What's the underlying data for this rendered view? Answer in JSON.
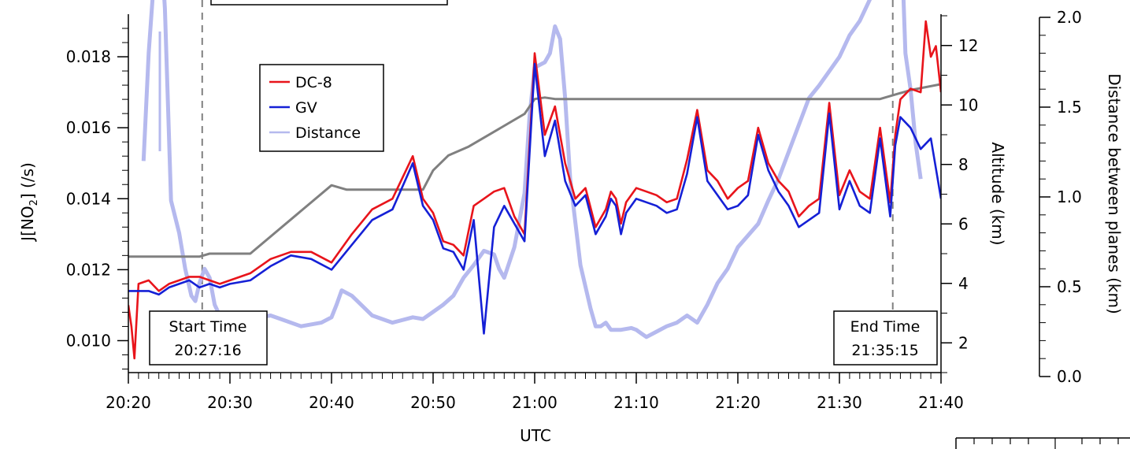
{
  "chart_data": {
    "type": "line",
    "xlabel": "UTC",
    "ylabel_left": {
      "prefix": "J[NO",
      "sub": "2",
      "suffix": "] (/s)"
    },
    "ylabel_right1": "Altitude (km)",
    "ylabel_right2": "Distance between planes (km)",
    "x_ticks": [
      "20:20",
      "20:30",
      "20:40",
      "20:50",
      "21:00",
      "21:10",
      "21:20",
      "21:30",
      "21:40"
    ],
    "xlim_minutes": [
      0,
      80
    ],
    "y_left_ticks": [
      "0.010",
      "0.012",
      "0.014",
      "0.016",
      "0.018"
    ],
    "ylim_left": [
      0.0091,
      0.0192
    ],
    "y_alt_ticks": [
      "2",
      "4",
      "6",
      "8",
      "10",
      "12"
    ],
    "ylim_alt": [
      1.0,
      13.0
    ],
    "y_dist_ticks": [
      "0.0",
      "0.5",
      "1.0",
      "1.5",
      "2.0"
    ],
    "ylim_dist": [
      0.0,
      2.0
    ],
    "legend": {
      "position": "upper-left",
      "entries": [
        {
          "label": "DC-8",
          "color": "#e8141b"
        },
        {
          "label": "GV",
          "color": "#1520d6"
        },
        {
          "label": "Distance",
          "color": "#b5b9ee"
        }
      ]
    },
    "annotations": {
      "start": {
        "line1": "Start Time",
        "line2": "20:27:16",
        "x_minutes": 7.27
      },
      "end": {
        "line1": "End Time",
        "line2": "21:35:15",
        "x_minutes": 75.25
      }
    },
    "series": [
      {
        "name": "DC-8",
        "axis": "left",
        "color": "#e8141b",
        "x": [
          0,
          0.3,
          0.6,
          1,
          2,
          3,
          4,
          5,
          6,
          7,
          8,
          9,
          10,
          12,
          14,
          16,
          18,
          20,
          22,
          24,
          26,
          28,
          29,
          30,
          31,
          32,
          33,
          34,
          35,
          36,
          37,
          38,
          39,
          40,
          41,
          42,
          43,
          44,
          45,
          46,
          47,
          47.5,
          48,
          48.5,
          49,
          50,
          51,
          52,
          53,
          54,
          55,
          56,
          57,
          58,
          59,
          60,
          61,
          62,
          63,
          64,
          65,
          66,
          67,
          68,
          69,
          70,
          71,
          72,
          73,
          74,
          75,
          75.5,
          76,
          77,
          78,
          78.5,
          79,
          79.5,
          80
        ],
        "y": [
          0.011,
          0.0104,
          0.0095,
          0.0116,
          0.0117,
          0.0114,
          0.0116,
          0.0117,
          0.0118,
          0.0118,
          0.0117,
          0.0116,
          0.0117,
          0.0119,
          0.0123,
          0.0125,
          0.0125,
          0.0122,
          0.013,
          0.0137,
          0.014,
          0.0152,
          0.014,
          0.0136,
          0.0128,
          0.0127,
          0.0124,
          0.0138,
          0.014,
          0.0142,
          0.0143,
          0.0135,
          0.013,
          0.0181,
          0.0158,
          0.0166,
          0.015,
          0.014,
          0.0143,
          0.0132,
          0.0137,
          0.0142,
          0.014,
          0.0133,
          0.0139,
          0.0143,
          0.0142,
          0.0141,
          0.0139,
          0.014,
          0.0151,
          0.0165,
          0.0148,
          0.0145,
          0.014,
          0.0143,
          0.0145,
          0.016,
          0.015,
          0.0145,
          0.0142,
          0.0135,
          0.0138,
          0.014,
          0.0167,
          0.0141,
          0.0148,
          0.0142,
          0.014,
          0.016,
          0.0139,
          0.0158,
          0.0168,
          0.0171,
          0.017,
          0.019,
          0.018,
          0.0183,
          0.017
        ]
      },
      {
        "name": "GV",
        "axis": "left",
        "color": "#1520d6",
        "x": [
          0,
          1,
          2,
          3,
          4,
          5,
          6,
          7,
          8,
          9,
          10,
          12,
          14,
          16,
          18,
          20,
          22,
          24,
          26,
          28,
          29,
          30,
          31,
          32,
          33,
          34,
          35,
          36,
          37,
          38,
          39,
          40,
          41,
          42,
          43,
          44,
          45,
          46,
          47,
          47.5,
          48,
          48.5,
          49,
          50,
          51,
          52,
          53,
          54,
          55,
          56,
          57,
          58,
          59,
          60,
          61,
          62,
          63,
          64,
          65,
          66,
          67,
          68,
          69,
          70,
          71,
          72,
          73,
          74,
          75,
          75.5,
          76,
          77,
          78,
          79,
          80
        ],
        "y": [
          0.0114,
          0.0114,
          0.0114,
          0.0113,
          0.0115,
          0.0116,
          0.0117,
          0.0115,
          0.0116,
          0.0115,
          0.0116,
          0.0117,
          0.0121,
          0.0124,
          0.0123,
          0.012,
          0.0127,
          0.0134,
          0.0137,
          0.015,
          0.0138,
          0.0134,
          0.0126,
          0.0125,
          0.012,
          0.0134,
          0.0102,
          0.0132,
          0.0138,
          0.0133,
          0.0128,
          0.0178,
          0.0152,
          0.0162,
          0.0145,
          0.0138,
          0.0141,
          0.013,
          0.0135,
          0.014,
          0.0138,
          0.013,
          0.0136,
          0.014,
          0.0139,
          0.0138,
          0.0136,
          0.0137,
          0.0147,
          0.0163,
          0.0145,
          0.0141,
          0.0137,
          0.0138,
          0.0141,
          0.0158,
          0.0148,
          0.0142,
          0.0138,
          0.0132,
          0.0134,
          0.0136,
          0.0164,
          0.0137,
          0.0145,
          0.0138,
          0.0136,
          0.0157,
          0.0135,
          0.0155,
          0.0163,
          0.016,
          0.0154,
          0.0157,
          0.014
        ]
      },
      {
        "name": "Altitude",
        "axis": "altitude",
        "color": "#808080",
        "x": [
          0,
          7.0,
          8.0,
          12.0,
          20.0,
          21.5,
          29.0,
          30.0,
          31.5,
          33.5,
          39.0,
          40.0,
          41.0,
          42.0,
          74.0,
          77.0,
          80.0
        ],
        "y": [
          4.9,
          4.9,
          5.0,
          5.0,
          7.3,
          7.15,
          7.15,
          7.8,
          8.3,
          8.6,
          9.7,
          10.2,
          10.25,
          10.2,
          10.2,
          10.5,
          10.7
        ]
      },
      {
        "name": "Distance",
        "axis": "distance",
        "color": "#b5b9ee",
        "x": [
          1.5,
          2.0,
          2.5,
          3.0,
          3.6,
          4.2,
          5.0,
          5.6,
          6.2,
          6.6,
          7.0,
          7.5,
          8.0,
          8.5,
          9.0,
          10.0,
          11.0,
          12.0,
          13.0,
          14.0,
          15.0,
          17.0,
          19.0,
          20.0,
          20.5,
          21.0,
          22.0,
          24.0,
          26.0,
          28.0,
          29.0,
          30.0,
          31.0,
          32.0,
          33.0,
          34.0,
          35.0,
          36.0,
          36.5,
          37.0,
          38.0,
          39.0,
          39.5,
          40.0,
          41.0,
          41.5,
          42.0,
          42.5,
          43.0,
          43.5,
          44.5,
          45.5,
          46.0,
          46.5,
          47.0,
          47.5,
          48.5,
          49.5,
          50.0,
          50.5,
          51.0,
          52.0,
          53.0,
          54.0,
          55.0,
          56.0,
          57.0,
          58.0,
          59.0,
          60.0,
          62.0,
          63.0,
          64.0,
          65.0,
          66.0,
          67.0,
          68.0,
          69.0,
          70.0,
          71.0,
          72.0,
          73.0,
          74.0,
          75.0,
          75.5,
          76.0,
          76.5,
          77.0,
          77.5,
          78.0
        ],
        "y": [
          1.2,
          1.8,
          2.2,
          2.6,
          2.05,
          0.98,
          0.8,
          0.6,
          0.45,
          0.42,
          0.52,
          0.6,
          0.55,
          0.4,
          0.34,
          0.33,
          0.34,
          0.33,
          0.33,
          0.34,
          0.32,
          0.28,
          0.3,
          0.33,
          0.4,
          0.48,
          0.45,
          0.34,
          0.3,
          0.33,
          0.32,
          0.36,
          0.4,
          0.45,
          0.55,
          0.62,
          0.7,
          0.68,
          0.6,
          0.55,
          0.72,
          1.02,
          1.45,
          1.72,
          1.75,
          1.8,
          1.95,
          1.88,
          1.55,
          1.1,
          0.62,
          0.38,
          0.28,
          0.28,
          0.3,
          0.26,
          0.26,
          0.27,
          0.26,
          0.24,
          0.22,
          0.25,
          0.28,
          0.3,
          0.34,
          0.3,
          0.4,
          0.52,
          0.6,
          0.72,
          0.85,
          0.98,
          1.1,
          1.25,
          1.4,
          1.55,
          1.62,
          1.7,
          1.78,
          1.9,
          1.98,
          2.1,
          2.3,
          2.5,
          2.7,
          2.6,
          1.8,
          1.6,
          1.3,
          1.1
        ]
      }
    ]
  }
}
